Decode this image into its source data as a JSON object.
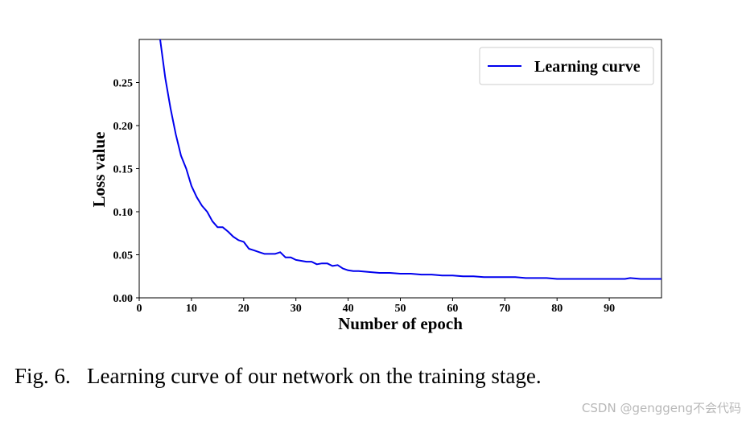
{
  "chart_data": {
    "type": "line",
    "xlabel": "Number of epoch",
    "ylabel": "Loss value",
    "xlim": [
      0,
      100
    ],
    "ylim": [
      0,
      0.3
    ],
    "xticks": [
      0,
      10,
      20,
      30,
      40,
      50,
      60,
      70,
      80,
      90
    ],
    "yticks": [
      0.0,
      0.05,
      0.1,
      0.15,
      0.2,
      0.25
    ],
    "xtick_labels": [
      "0",
      "10",
      "20",
      "30",
      "40",
      "50",
      "60",
      "70",
      "80",
      "90"
    ],
    "ytick_labels": [
      "0.00",
      "0.05",
      "0.10",
      "0.15",
      "0.20",
      "0.25"
    ],
    "grid": false,
    "legend": {
      "position": "top-right",
      "entries": [
        "Learning curve"
      ]
    },
    "series": [
      {
        "name": "Learning curve",
        "color": "#0000ee",
        "x": [
          4,
          5,
          6,
          7,
          8,
          9,
          10,
          11,
          12,
          13,
          14,
          15,
          16,
          17,
          18,
          19,
          20,
          21,
          22,
          23,
          24,
          25,
          26,
          27,
          28,
          29,
          30,
          31,
          32,
          33,
          34,
          35,
          36,
          37,
          38,
          39,
          40,
          41,
          42,
          44,
          46,
          48,
          50,
          52,
          54,
          56,
          58,
          60,
          62,
          64,
          66,
          68,
          70,
          72,
          74,
          76,
          78,
          80,
          82,
          84,
          86,
          88,
          90,
          92,
          93,
          94,
          96,
          98,
          100
        ],
        "y": [
          0.3,
          0.255,
          0.22,
          0.19,
          0.165,
          0.15,
          0.13,
          0.117,
          0.107,
          0.1,
          0.089,
          0.082,
          0.082,
          0.077,
          0.071,
          0.067,
          0.065,
          0.057,
          0.055,
          0.053,
          0.051,
          0.051,
          0.051,
          0.053,
          0.047,
          0.047,
          0.044,
          0.043,
          0.042,
          0.042,
          0.039,
          0.04,
          0.04,
          0.037,
          0.038,
          0.034,
          0.032,
          0.031,
          0.031,
          0.03,
          0.029,
          0.029,
          0.028,
          0.028,
          0.027,
          0.027,
          0.026,
          0.026,
          0.025,
          0.025,
          0.024,
          0.024,
          0.024,
          0.024,
          0.023,
          0.023,
          0.023,
          0.022,
          0.022,
          0.022,
          0.022,
          0.022,
          0.022,
          0.022,
          0.022,
          0.023,
          0.022,
          0.022,
          0.022
        ]
      }
    ]
  },
  "caption": "Fig. 6.   Learning curve of our network on the training stage.",
  "watermark": "CSDN @genggeng不会代码"
}
